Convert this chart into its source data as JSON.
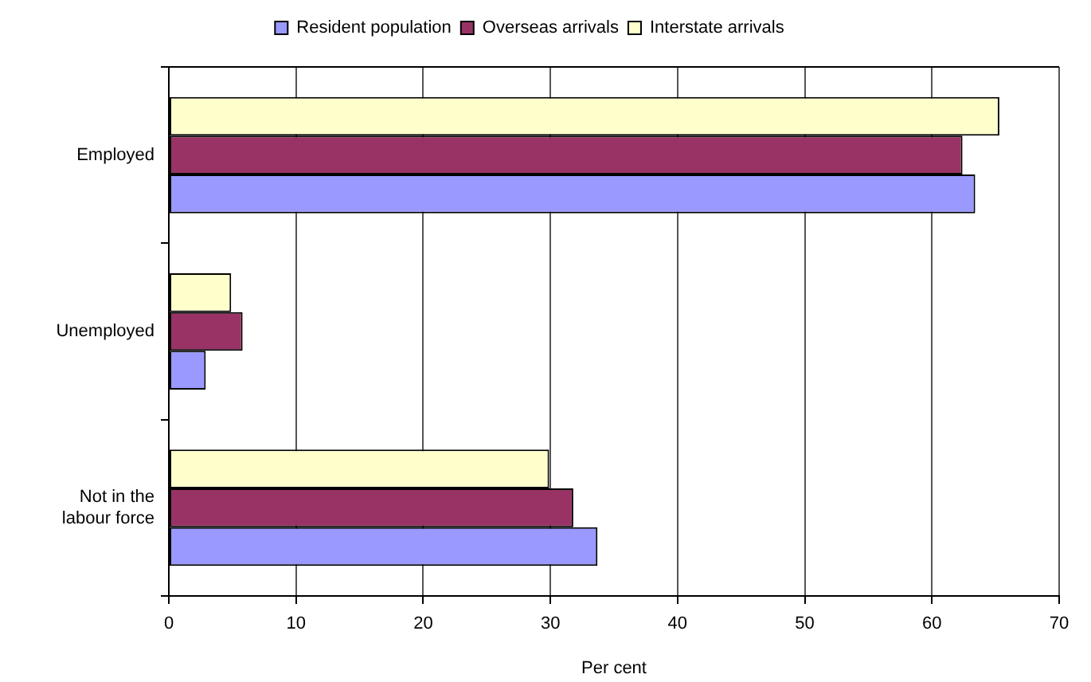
{
  "chart_data": {
    "type": "bar",
    "orientation": "horizontal",
    "legend": "top",
    "grid": "x",
    "categories": [
      "Employed",
      "Unemployed",
      "Not in the labour force"
    ],
    "series": [
      {
        "name": "Resident population",
        "color": "#9999ff",
        "values": [
          63.4,
          2.9,
          33.7
        ]
      },
      {
        "name": "Overseas arrivals",
        "color": "#993366",
        "values": [
          62.4,
          5.8,
          31.8
        ]
      },
      {
        "name": "Interstate arrivals",
        "color": "#ffffcc",
        "values": [
          65.3,
          4.9,
          29.9
        ]
      }
    ],
    "xlabel": "Per cent",
    "xlim": [
      0,
      70
    ],
    "xticks": [
      0,
      10,
      20,
      30,
      40,
      50,
      60,
      70
    ]
  }
}
